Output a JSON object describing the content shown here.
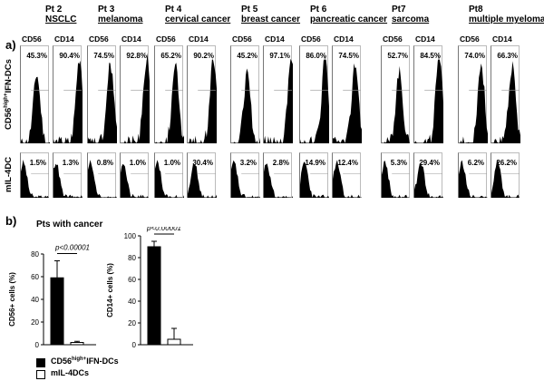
{
  "panel_a": {
    "label": "a)",
    "row_labels": [
      "CD56high+IFN-DCs",
      "mIL-4DC"
    ],
    "row1_label_main": "CD56",
    "row1_label_sup": "high+",
    "row1_label_tail": "IFN-DCs",
    "row2_label": "mIL-4DC",
    "patients": [
      {
        "pt": "Pt 2",
        "cancer": "NSCLC",
        "markers": [
          "CD56",
          "CD14"
        ],
        "ifn": [
          "45.3%",
          "90.4%"
        ],
        "il4": [
          "1.5%",
          "1.3%"
        ]
      },
      {
        "pt": "Pt 3",
        "cancer": "melanoma",
        "markers": [
          "CD56",
          "CD14"
        ],
        "ifn": [
          "74.5%",
          "92.8%"
        ],
        "il4": [
          "0.8%",
          "1.0%"
        ]
      },
      {
        "pt": "Pt 4",
        "cancer": "cervical cancer",
        "markers": [
          "CD56",
          "CD14"
        ],
        "ifn": [
          "65.2%",
          "90.2%"
        ],
        "il4": [
          "1.0%",
          "30.4%"
        ]
      },
      {
        "pt": "Pt 5",
        "cancer": "breast cancer",
        "markers": [
          "CD56",
          "CD14"
        ],
        "ifn": [
          "45.2%",
          "97.1%"
        ],
        "il4": [
          "3.2%",
          "2.8%"
        ]
      },
      {
        "pt": "Pt 6",
        "cancer": "pancreatic cancer",
        "markers": [
          "CD56",
          "CD14"
        ],
        "ifn": [
          "86.0%",
          "74.5%"
        ],
        "il4": [
          "14.9%",
          "12.4%"
        ]
      },
      {
        "pt": "Pt7",
        "cancer": "sarcoma",
        "markers": [
          "CD56",
          "CD14"
        ],
        "ifn": [
          "52.7%",
          "84.5%"
        ],
        "il4": [
          "5.3%",
          "29.4%"
        ]
      },
      {
        "pt": "Pt8",
        "cancer": "multiple myeloma",
        "markers": [
          "CD56",
          "CD14"
        ],
        "ifn": [
          "74.0%",
          "66.3%"
        ],
        "il4": [
          "6.2%",
          "26.2%"
        ]
      }
    ]
  },
  "panel_b": {
    "label": "b)",
    "subtitle": "Pts with cancer",
    "legend": [
      {
        "name": "CD56high+IFN-DCs",
        "main": "CD56",
        "sup": "high+",
        "tail": "IFN-DCs",
        "fill": "#000000"
      },
      {
        "name": "mIL-4DCs",
        "main": "mIL-4DCs",
        "fill": "#ffffff"
      }
    ]
  },
  "chart_data": [
    {
      "type": "bar",
      "categories": [
        "CD56high+IFN-DCs",
        "mIL-4DCs"
      ],
      "values": [
        59,
        2
      ],
      "errors": [
        15,
        1
      ],
      "ylabel": "CD56+ cells (%)",
      "ylim": [
        0,
        80
      ],
      "yticks": [
        0,
        20,
        40,
        60,
        80
      ],
      "annotation": "p<0.00001",
      "colors": [
        "#000000",
        "#ffffff"
      ]
    },
    {
      "type": "bar",
      "categories": [
        "CD56high+IFN-DCs",
        "mIL-4DCs"
      ],
      "values": [
        90,
        5
      ],
      "errors": [
        5,
        10
      ],
      "ylabel": "CD14+ cells (%)",
      "ylim": [
        0,
        100
      ],
      "yticks": [
        0,
        20,
        40,
        60,
        80,
        100
      ],
      "annotation": "p<0.00001",
      "colors": [
        "#000000",
        "#ffffff"
      ]
    }
  ]
}
